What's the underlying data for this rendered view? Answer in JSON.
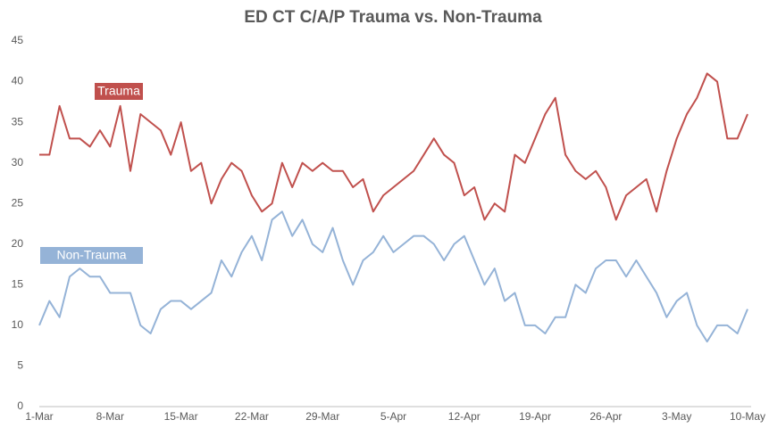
{
  "chart_data": {
    "type": "line",
    "title": "ED CT C/A/P Trauma vs. Non-Trauma",
    "categories": [
      "1-Mar",
      null,
      null,
      null,
      null,
      null,
      null,
      "8-Mar",
      null,
      null,
      null,
      null,
      null,
      null,
      "15-Mar",
      null,
      null,
      null,
      null,
      null,
      null,
      "22-Mar",
      null,
      null,
      null,
      null,
      null,
      null,
      "29-Mar",
      null,
      null,
      null,
      null,
      null,
      null,
      "5-Apr",
      null,
      null,
      null,
      null,
      null,
      null,
      "12-Apr",
      null,
      null,
      null,
      null,
      null,
      null,
      "19-Apr",
      null,
      null,
      null,
      null,
      null,
      null,
      "26-Apr",
      null,
      null,
      null,
      null,
      null,
      null,
      "3-May",
      null,
      null,
      null,
      null,
      null,
      null,
      "10-May"
    ],
    "series": [
      {
        "name": "Trauma",
        "color": "#c0504d",
        "values": [
          31,
          31,
          37,
          33,
          33,
          32,
          34,
          32,
          37,
          29,
          36,
          35,
          34,
          31,
          35,
          29,
          30,
          25,
          28,
          30,
          29,
          26,
          24,
          25,
          30,
          27,
          30,
          29,
          30,
          29,
          29,
          27,
          28,
          24,
          26,
          27,
          28,
          29,
          31,
          33,
          31,
          30,
          26,
          27,
          23,
          25,
          24,
          31,
          30,
          33,
          36,
          38,
          31,
          29,
          28,
          29,
          27,
          23,
          26,
          27,
          28,
          24,
          29,
          33,
          36,
          38,
          41,
          40,
          33,
          33,
          36
        ]
      },
      {
        "name": "Non-Trauma",
        "color": "#95b3d7",
        "values": [
          10,
          13,
          11,
          16,
          17,
          16,
          16,
          14,
          14,
          14,
          10,
          9,
          12,
          13,
          13,
          12,
          13,
          14,
          18,
          16,
          19,
          21,
          18,
          23,
          24,
          21,
          23,
          20,
          19,
          22,
          18,
          15,
          18,
          19,
          21,
          19,
          20,
          21,
          21,
          20,
          18,
          20,
          21,
          18,
          15,
          17,
          13,
          14,
          10,
          10,
          9,
          11,
          11,
          15,
          14,
          17,
          18,
          18,
          16,
          18,
          16,
          14,
          11,
          13,
          14,
          10,
          8,
          10,
          10,
          9,
          12
        ]
      }
    ],
    "ylim": [
      0,
      45
    ],
    "yticks": [
      0,
      5,
      10,
      15,
      20,
      25,
      30,
      35,
      40,
      45
    ],
    "grid": false
  }
}
